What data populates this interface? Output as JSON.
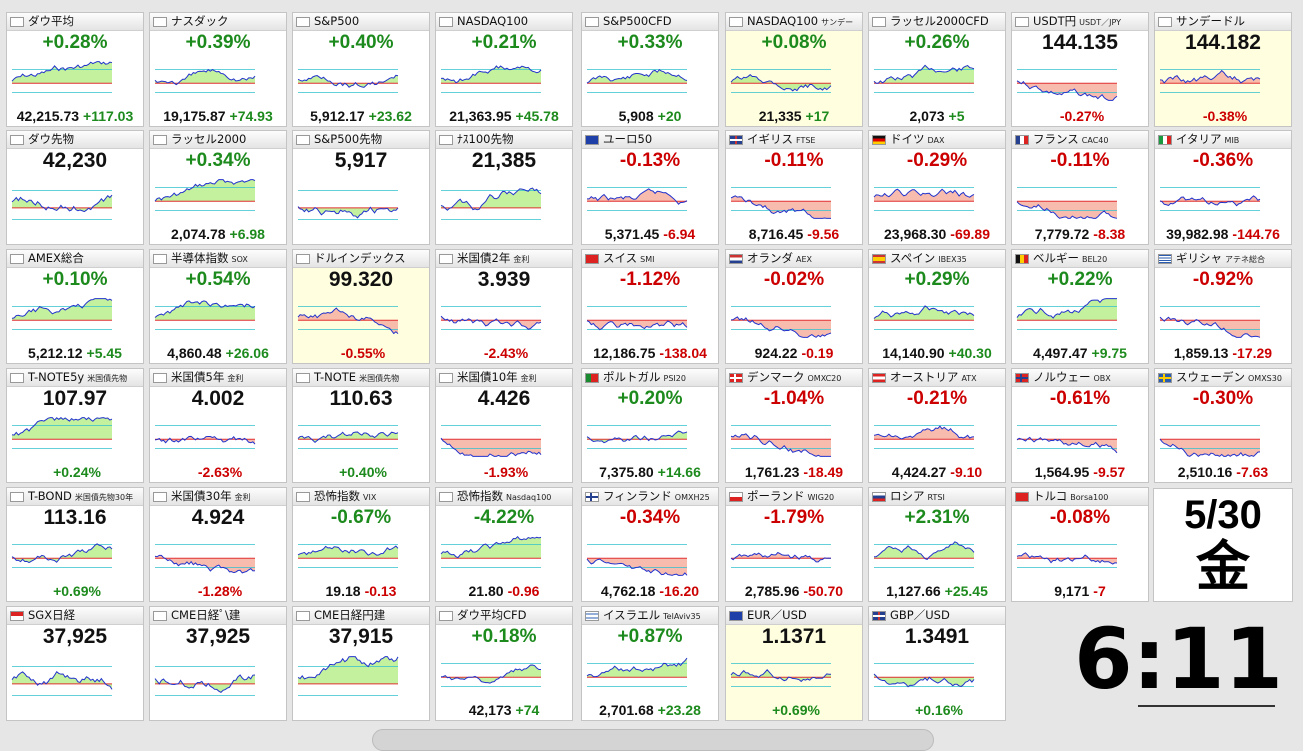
{
  "colors": {
    "up": "#1d8a1d",
    "down": "#cc0000",
    "up_fill": "#b8ef8c",
    "down_fill": "#f7b0a0",
    "line": "#2233cc",
    "prev_line": "#e03030",
    "tick_line": "#31c0cc"
  },
  "tiles": [
    {
      "name": "ダウ平均",
      "sub": "",
      "flag": "us",
      "pct": "+0.28%",
      "dir": "up",
      "foot": "42,215.73",
      "change": "+117.03"
    },
    {
      "name": "ナスダック",
      "sub": "",
      "flag": "us",
      "pct": "+0.39%",
      "dir": "up",
      "foot": "19,175.87",
      "change": "+74.93"
    },
    {
      "name": "S&P500",
      "sub": "",
      "flag": "us",
      "pct": "+0.40%",
      "dir": "up",
      "foot": "5,912.17",
      "change": "+23.62"
    },
    {
      "name": "NASDAQ100",
      "sub": "",
      "flag": "us",
      "pct": "+0.21%",
      "dir": "up",
      "foot": "21,363.95",
      "change": "+45.78"
    },
    {
      "name": "S&P500CFD",
      "sub": "",
      "flag": "us",
      "pct": "+0.33%",
      "dir": "up",
      "foot": "5,908",
      "change": "+20"
    },
    {
      "name": "NASDAQ100",
      "sub": "サンデー",
      "flag": "us",
      "pct": "+0.08%",
      "dir": "up",
      "foot": "21,335",
      "change": "+17",
      "yellow": true
    },
    {
      "name": "ラッセル2000CFD",
      "sub": "",
      "flag": "us",
      "pct": "+0.26%",
      "dir": "up",
      "foot": "2,073",
      "change": "+5"
    },
    {
      "name": "USDT円",
      "sub": "USDT／JPY",
      "flag": "us",
      "big": "144.135",
      "dir": "dn",
      "foot": "-0.27%",
      "change": ""
    },
    {
      "name": "サンデードル",
      "sub": "",
      "flag": "us",
      "big": "144.182",
      "dir": "dn",
      "foot": "-0.38%",
      "change": "",
      "yellow": true
    },
    {
      "name": "ダウ先物",
      "sub": "",
      "flag": "us",
      "big": "42,230",
      "dir": "up",
      "foot": "",
      "change": ""
    },
    {
      "name": "ラッセル2000",
      "sub": "",
      "flag": "us",
      "pct": "+0.34%",
      "dir": "up",
      "foot": "2,074.78",
      "change": "+6.98"
    },
    {
      "name": "S&P500先物",
      "sub": "",
      "flag": "us",
      "big": "5,917",
      "dir": "up",
      "foot": "",
      "change": ""
    },
    {
      "name": "ﾅｽ100先物",
      "sub": "",
      "flag": "us",
      "big": "21,385",
      "dir": "up",
      "foot": "",
      "change": ""
    },
    {
      "name": "ユーロ50",
      "sub": "",
      "flag": "eu",
      "pct": "-0.13%",
      "dir": "dn",
      "foot": "5,371.45",
      "change": "-6.94"
    },
    {
      "name": "イギリス",
      "sub": "FTSE",
      "flag": "uk",
      "pct": "-0.11%",
      "dir": "dn",
      "foot": "8,716.45",
      "change": "-9.56"
    },
    {
      "name": "ドイツ",
      "sub": "DAX",
      "flag": "de",
      "pct": "-0.29%",
      "dir": "dn",
      "foot": "23,968.30",
      "change": "-69.89"
    },
    {
      "name": "フランス",
      "sub": "CAC40",
      "flag": "fr",
      "pct": "-0.11%",
      "dir": "dn",
      "foot": "7,779.72",
      "change": "-8.38"
    },
    {
      "name": "イタリア",
      "sub": "MIB",
      "flag": "it",
      "pct": "-0.36%",
      "dir": "dn",
      "foot": "39,982.98",
      "change": "-144.76"
    },
    {
      "name": "AMEX総合",
      "sub": "",
      "flag": "us",
      "pct": "+0.10%",
      "dir": "up",
      "foot": "5,212.12",
      "change": "+5.45"
    },
    {
      "name": "半導体指数",
      "sub": "SOX",
      "flag": "us",
      "pct": "+0.54%",
      "dir": "up",
      "foot": "4,860.48",
      "change": "+26.06"
    },
    {
      "name": "ドルインデックス",
      "sub": "",
      "flag": "us",
      "big": "99.320",
      "dir": "dn",
      "foot": "-0.55%",
      "change": "",
      "yellow": true
    },
    {
      "name": "米国債2年",
      "sub": "金利",
      "flag": "us",
      "big": "3.939",
      "dir": "dn",
      "foot": "-2.43%",
      "change": ""
    },
    {
      "name": "スイス",
      "sub": "SMI",
      "flag": "ch",
      "pct": "-1.12%",
      "dir": "dn",
      "foot": "12,186.75",
      "change": "-138.04"
    },
    {
      "name": "オランダ",
      "sub": "AEX",
      "flag": "nl",
      "pct": "-0.02%",
      "dir": "dn",
      "foot": "924.22",
      "change": "-0.19"
    },
    {
      "name": "スペイン",
      "sub": "IBEX35",
      "flag": "es",
      "pct": "+0.29%",
      "dir": "up",
      "foot": "14,140.90",
      "change": "+40.30"
    },
    {
      "name": "ベルギー",
      "sub": "BEL20",
      "flag": "be",
      "pct": "+0.22%",
      "dir": "up",
      "foot": "4,497.47",
      "change": "+9.75"
    },
    {
      "name": "ギリシャ",
      "sub": "アテネ総合",
      "flag": "gr",
      "pct": "-0.92%",
      "dir": "dn",
      "foot": "1,859.13",
      "change": "-17.29"
    },
    {
      "name": "T-NOTE5y",
      "sub": "米国債先物",
      "flag": "us",
      "big": "107.97",
      "dir": "up",
      "foot": "+0.24%",
      "change": ""
    },
    {
      "name": "米国債5年",
      "sub": "金利",
      "flag": "us",
      "big": "4.002",
      "dir": "dn",
      "foot": "-2.63%",
      "change": ""
    },
    {
      "name": "T-NOTE",
      "sub": "米国債先物",
      "flag": "us",
      "big": "110.63",
      "dir": "up",
      "foot": "+0.40%",
      "change": ""
    },
    {
      "name": "米国債10年",
      "sub": "金利",
      "flag": "us",
      "big": "4.426",
      "dir": "dn",
      "foot": "-1.93%",
      "change": ""
    },
    {
      "name": "ポルトガル",
      "sub": "PSI20",
      "flag": "pt",
      "pct": "+0.20%",
      "dir": "up",
      "foot": "7,375.80",
      "change": "+14.66"
    },
    {
      "name": "デンマーク",
      "sub": "OMXC20",
      "flag": "dk",
      "pct": "-1.04%",
      "dir": "dn",
      "foot": "1,761.23",
      "change": "-18.49"
    },
    {
      "name": "オーストリア",
      "sub": "ATX",
      "flag": "at",
      "pct": "-0.21%",
      "dir": "dn",
      "foot": "4,424.27",
      "change": "-9.10"
    },
    {
      "name": "ノルウェー",
      "sub": "OBX",
      "flag": "no",
      "pct": "-0.61%",
      "dir": "dn",
      "foot": "1,564.95",
      "change": "-9.57"
    },
    {
      "name": "スウェーデン",
      "sub": "OMXS30",
      "flag": "se",
      "pct": "-0.30%",
      "dir": "dn",
      "foot": "2,510.16",
      "change": "-7.63"
    },
    {
      "name": "T-BOND",
      "sub": "米国債先物30年",
      "flag": "us",
      "big": "113.16",
      "dir": "up",
      "foot": "+0.69%",
      "change": ""
    },
    {
      "name": "米国債30年",
      "sub": "金利",
      "flag": "us",
      "big": "4.924",
      "dir": "dn",
      "foot": "-1.28%",
      "change": ""
    },
    {
      "name": "恐怖指数",
      "sub": "VIX",
      "flag": "us",
      "pct": "-0.67%",
      "dir": "up",
      "foot": "19.18",
      "change": "-0.13"
    },
    {
      "name": "恐怖指数",
      "sub": "Nasdaq100",
      "flag": "us",
      "pct": "-4.22%",
      "dir": "up",
      "foot": "21.80",
      "change": "-0.96"
    },
    {
      "name": "フィンランド",
      "sub": "OMXH25",
      "flag": "fi",
      "pct": "-0.34%",
      "dir": "dn",
      "foot": "4,762.18",
      "change": "-16.20"
    },
    {
      "name": "ポーランド",
      "sub": "WIG20",
      "flag": "pl",
      "pct": "-1.79%",
      "dir": "dn",
      "foot": "2,785.96",
      "change": "-50.70"
    },
    {
      "name": "ロシア",
      "sub": "RTSI",
      "flag": "ru",
      "pct": "+2.31%",
      "dir": "up",
      "foot": "1,127.66",
      "change": "+25.45"
    },
    {
      "name": "トルコ",
      "sub": "Borsa100",
      "flag": "tr",
      "pct": "-0.08%",
      "dir": "dn",
      "foot": "9,171",
      "change": "-7"
    },
    {
      "name": "SGX日経",
      "sub": "",
      "flag": "sg",
      "big": "37,925",
      "dir": "up",
      "foot": "",
      "change": ""
    },
    {
      "name": "CME日経ﾟ\\建",
      "sub": "",
      "flag": "us",
      "big": "37,925",
      "dir": "up",
      "foot": "",
      "change": ""
    },
    {
      "name": "CME日経円建",
      "sub": "",
      "flag": "us",
      "big": "37,915",
      "dir": "up",
      "foot": "",
      "change": ""
    },
    {
      "name": "ダウ平均CFD",
      "sub": "",
      "flag": "us",
      "pct": "+0.18%",
      "dir": "up",
      "foot": "42,173",
      "change": "+74"
    },
    {
      "name": "イスラエル",
      "sub": "TelAviv35",
      "flag": "il",
      "pct": "+0.87%",
      "dir": "up",
      "foot": "2,701.68",
      "change": "+23.28"
    },
    {
      "name": "EUR／USD",
      "sub": "",
      "flag": "eu",
      "big": "1.1371",
      "dir": "up",
      "foot": "+0.69%",
      "change": "",
      "yellow": true
    },
    {
      "name": "GBP／USD",
      "sub": "",
      "flag": "uk",
      "big": "1.3491",
      "dir": "up",
      "foot": "+0.16%",
      "change": ""
    }
  ],
  "date": {
    "md": "5/30",
    "weekday": "金"
  },
  "clock": {
    "time": "6:11"
  }
}
